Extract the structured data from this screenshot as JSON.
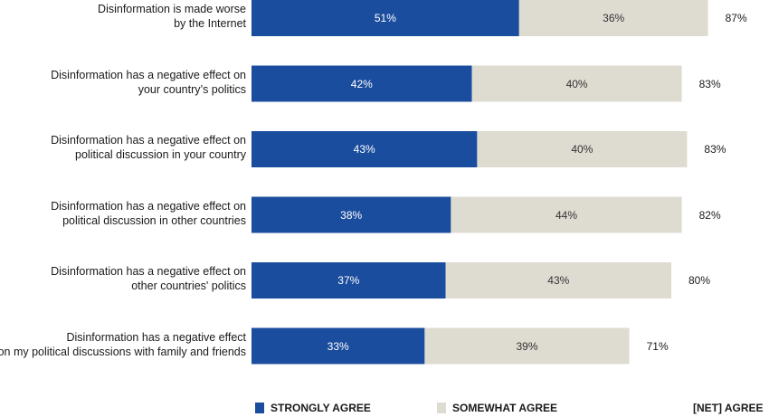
{
  "chart_data": {
    "type": "bar",
    "orientation": "horizontal",
    "stacked": true,
    "categories": [
      "Disinformation is made worse by the Internet",
      "Disinformation has a negative effect on your country’s politics",
      "Disinformation has a negative effect on political discussion in your country",
      "Disinformation has a negative effect on political discussion in other countries",
      "Disinformation has a negative effect on other countries' politics",
      "Disinformation has a negative effect on my political discussions with family and friends"
    ],
    "category_lines": [
      [
        "Disinformation is made worse",
        "by the Internet"
      ],
      [
        "Disinformation has a negative effect on",
        "your country’s politics"
      ],
      [
        "Disinformation has a negative effect on",
        "political discussion in your country"
      ],
      [
        "Disinformation has a negative effect on",
        "political discussion in other countries"
      ],
      [
        "Disinformation has a negative effect on",
        "other countries' politics"
      ],
      [
        "Disinformation has a negative effect",
        "on my political discussions with family and friends"
      ]
    ],
    "series": [
      {
        "name": "STRONGLY AGREE",
        "values": [
          51,
          42,
          43,
          38,
          37,
          33
        ],
        "labels": [
          "51%",
          "42%",
          "43%",
          "38%",
          "37%",
          "33%"
        ],
        "color": "#1b4d9e"
      },
      {
        "name": "SOMEWHAT AGREE",
        "values": [
          36,
          40,
          40,
          44,
          43,
          39
        ],
        "labels": [
          "36%",
          "40%",
          "40%",
          "44%",
          "43%",
          "39%"
        ],
        "color": "#dedbd1"
      }
    ],
    "net": {
      "name": "[NET] AGREE",
      "values": [
        87,
        83,
        83,
        82,
        80,
        71
      ],
      "labels": [
        "87%",
        "83%",
        "83%",
        "82%",
        "80%",
        "71%"
      ]
    },
    "xlim": [
      0,
      100
    ],
    "legend_position": "bottom"
  }
}
